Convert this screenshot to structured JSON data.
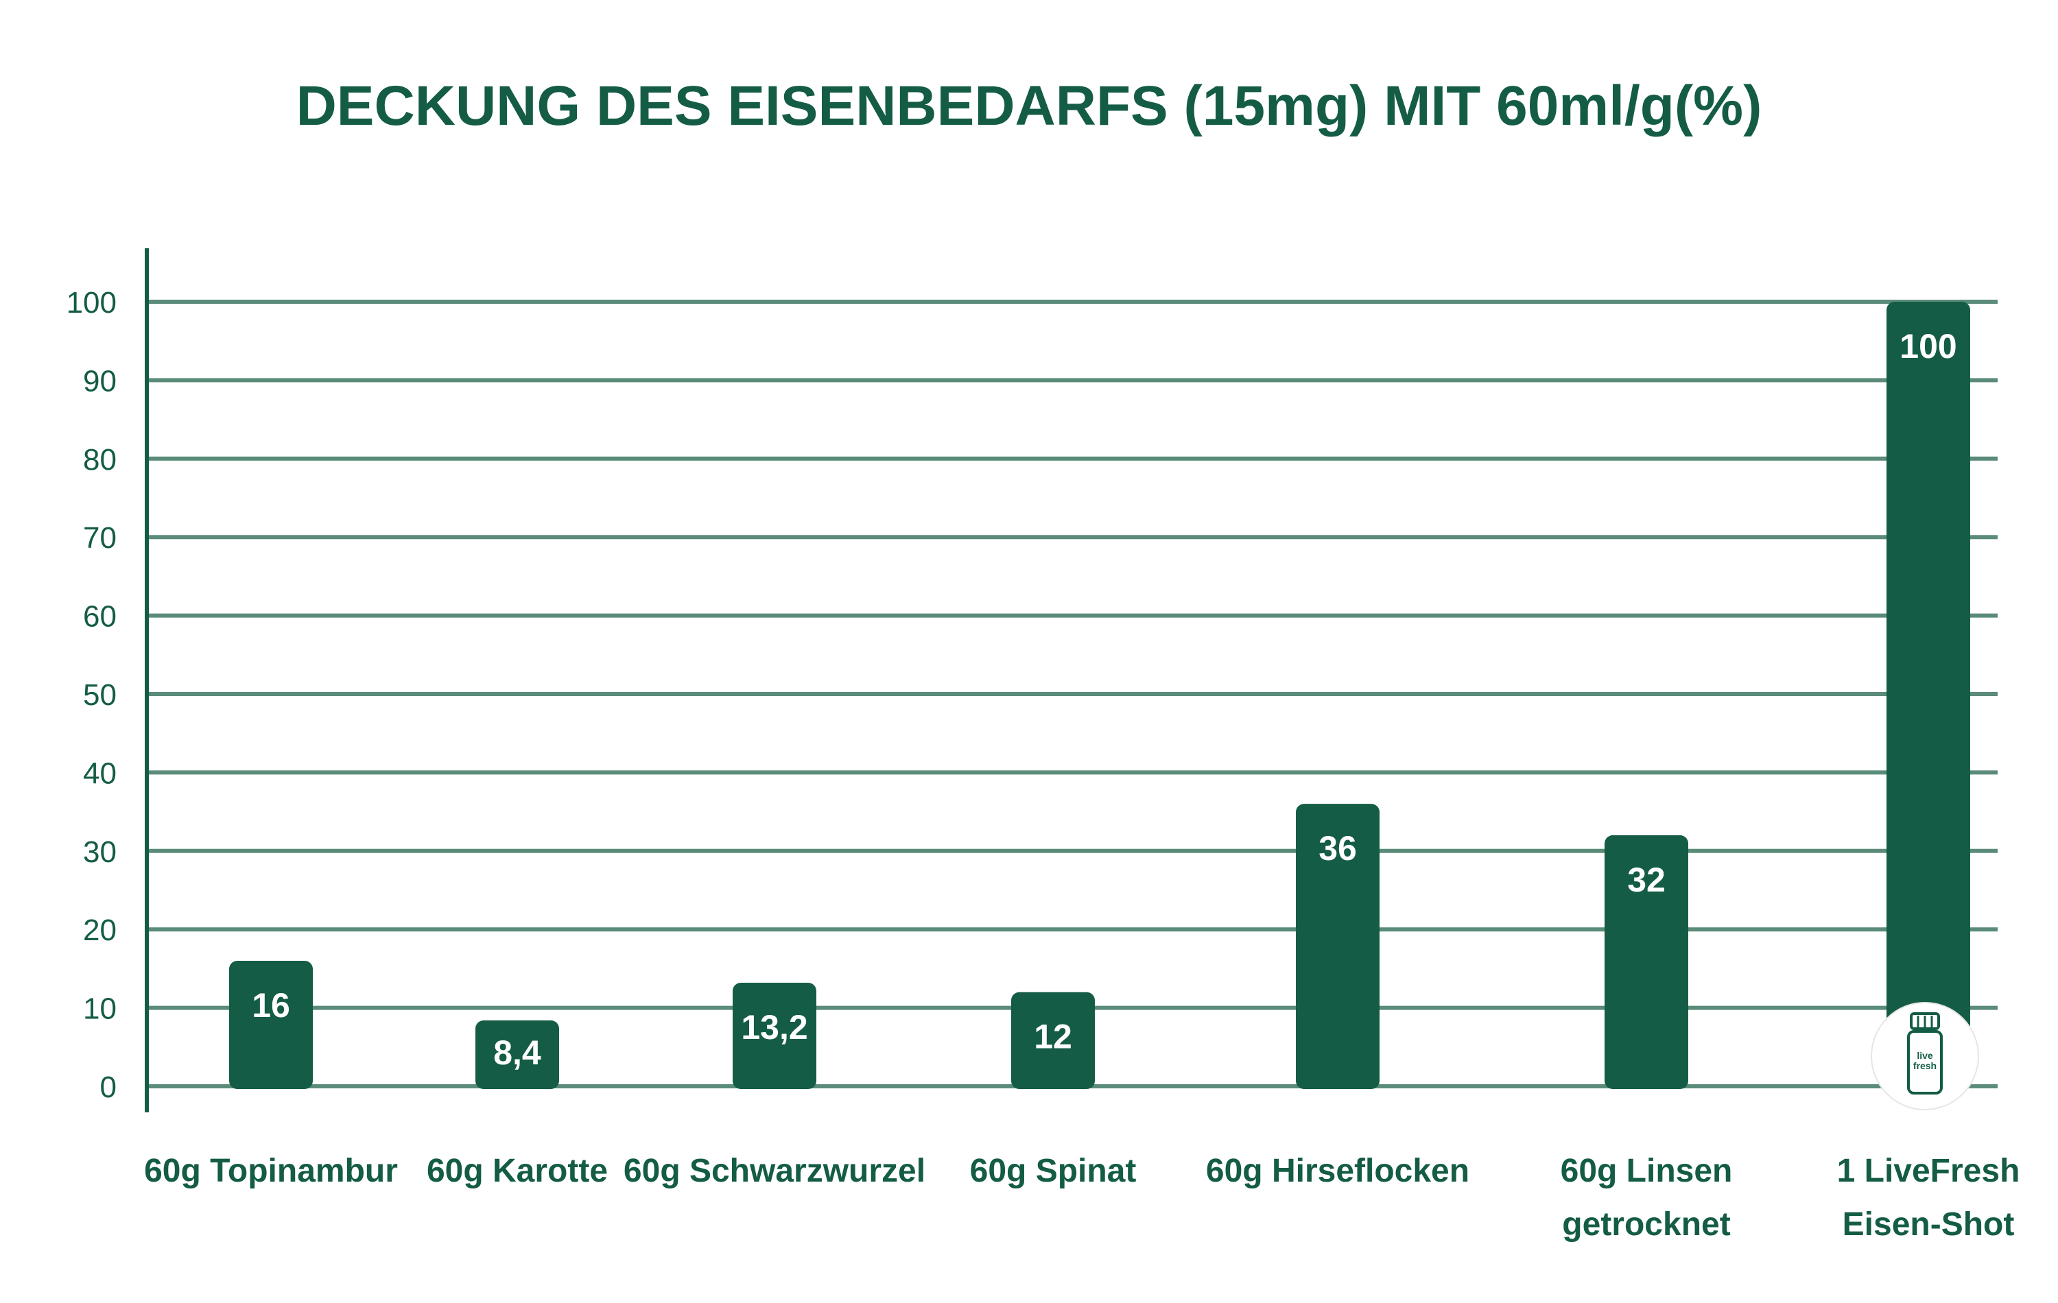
{
  "colors": {
    "primary": "#145c45",
    "grid": "#5a8c79",
    "bar_label": "#ffffff",
    "background": "#ffffff"
  },
  "chart_data": {
    "type": "bar",
    "title": "DECKUNG DES EISENBEDARFS (15mg) MIT 60ml/g(%)",
    "xlabel": "",
    "ylabel": "",
    "ylim": [
      0,
      100
    ],
    "yticks": [
      0,
      10,
      20,
      30,
      40,
      50,
      60,
      70,
      80,
      90,
      100
    ],
    "grid": true,
    "categories": [
      "60g Topinambur",
      "60g Karotte",
      "60g Schwarzwurzel",
      "60g Spinat",
      "60g Hirseflocken",
      "60g Linsen getrocknet",
      "1 LiveFresh Eisen-Shot"
    ],
    "category_lines": [
      [
        "60g Topinambur"
      ],
      [
        "60g Karotte"
      ],
      [
        "60g Schwarzwurzel"
      ],
      [
        "60g Spinat"
      ],
      [
        "60g Hirseflocken"
      ],
      [
        "60g Linsen",
        "getrocknet"
      ],
      [
        "1 LiveFresh",
        "Eisen-Shot"
      ]
    ],
    "values": [
      16,
      8.4,
      13.2,
      12,
      36,
      32,
      100
    ],
    "value_labels": [
      "16",
      "8,4",
      "13,2",
      "12",
      "36",
      "32",
      "100"
    ]
  },
  "logo": {
    "icon": "bottle-icon",
    "text_line1": "live",
    "text_line2": "fresh"
  }
}
